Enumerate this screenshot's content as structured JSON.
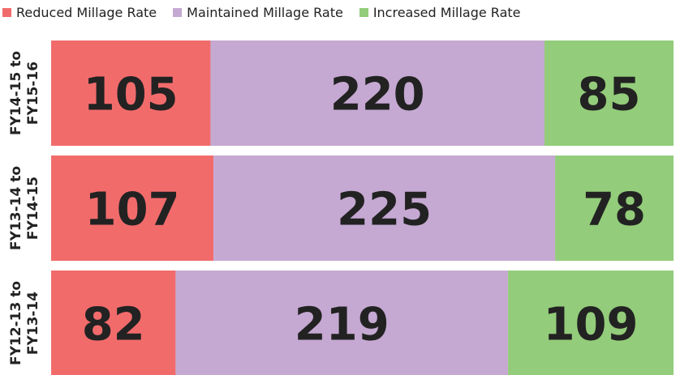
{
  "chart_data": {
    "type": "stacked-bar-horizontal",
    "categories": [
      "FY14-15 to FY15-16",
      "FY13-14 to FY14-15",
      "FY12-13 to FY13-14"
    ],
    "series": [
      {
        "name": "Reduced Millage Rate",
        "color": "#f26b6b",
        "values": [
          105,
          107,
          82
        ]
      },
      {
        "name": "Maintained Millage Rate",
        "color": "#c5a9d2",
        "values": [
          220,
          225,
          219
        ]
      },
      {
        "name": "Increased Millage Rate",
        "color": "#93cc7a",
        "values": [
          85,
          78,
          109
        ]
      }
    ],
    "xlim": [
      0,
      410
    ]
  }
}
